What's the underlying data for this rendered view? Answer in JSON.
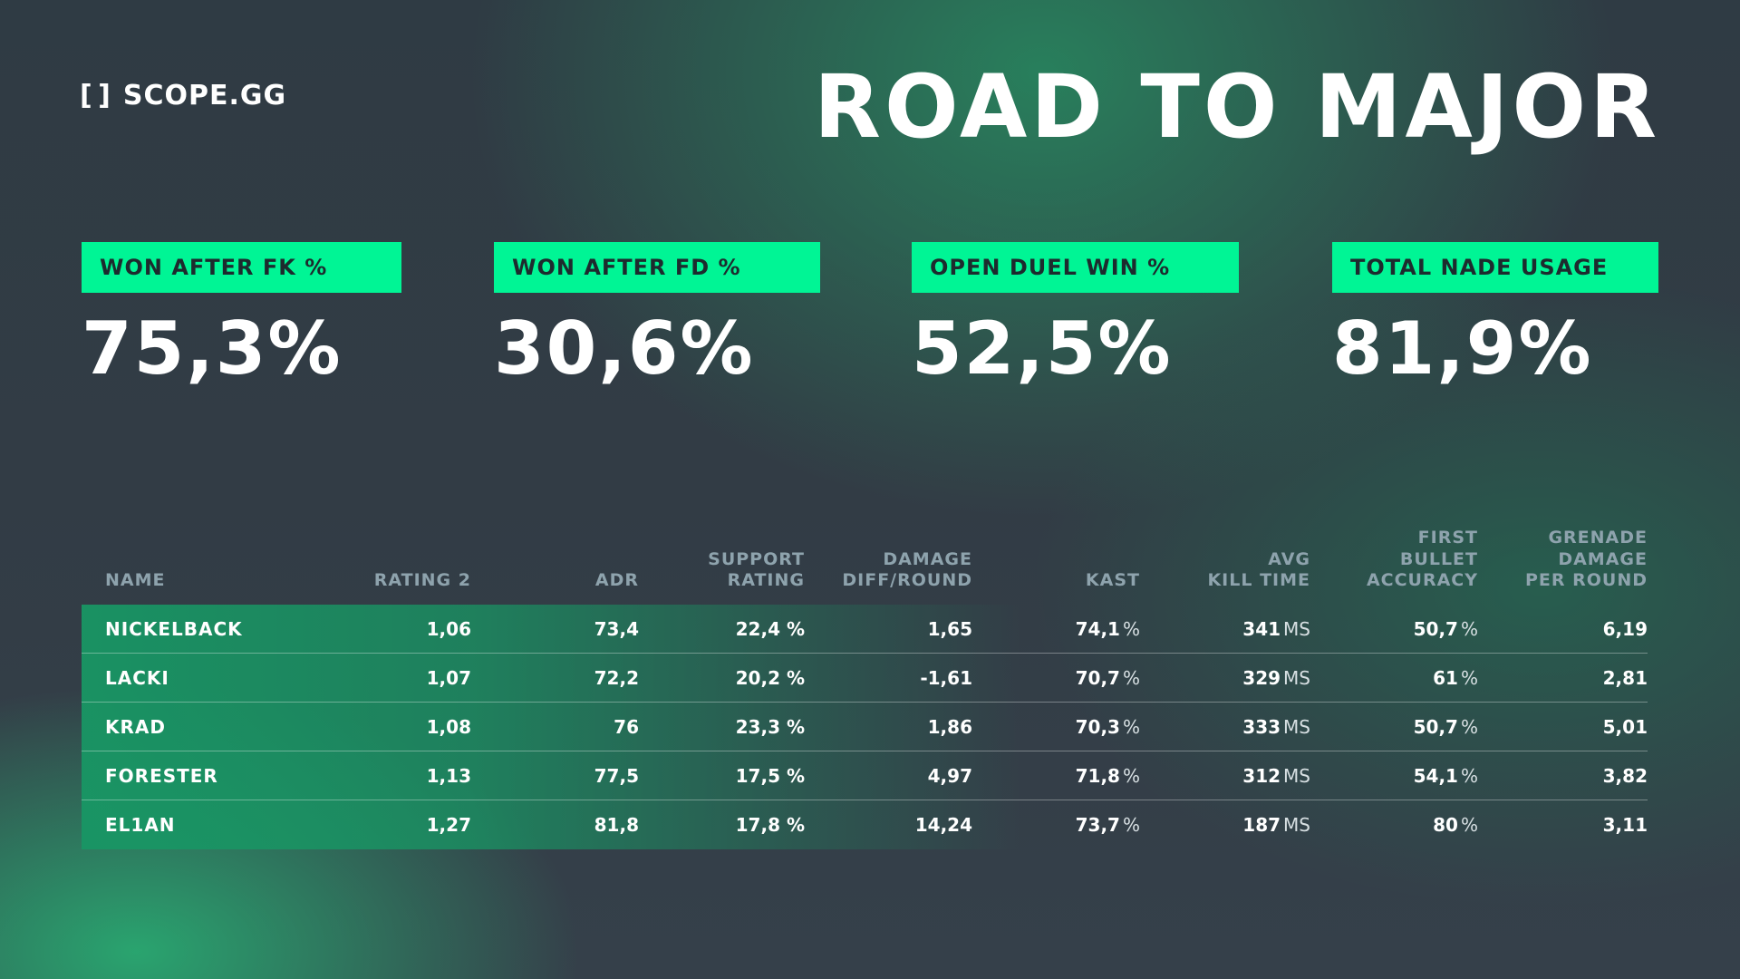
{
  "brand": {
    "icon": "[ ]",
    "name": "SCOPE.GG"
  },
  "title": "ROAD TO MAJOR",
  "stats": [
    {
      "label": "WON AFTER FK %",
      "value": "75,3%"
    },
    {
      "label": "WON AFTER FD %",
      "value": "30,6%"
    },
    {
      "label": "OPEN DUEL WIN %",
      "value": "52,5%"
    },
    {
      "label": "TOTAL NADE USAGE",
      "value": "81,9%"
    }
  ],
  "table": {
    "headers": [
      "NAME",
      "RATING 2",
      "ADR",
      "SUPPORT\nRATING",
      "DAMAGE\nDIFF/ROUND",
      "KAST",
      "AVG\nKILL TIME",
      "FIRST\nBULLET\nACCURACY",
      "GRENADE\nDAMAGE\nPER ROUND"
    ],
    "rows": [
      {
        "name": "NICKELBACK",
        "rating": "1,06",
        "adr": "73,4",
        "support": "22,4 %",
        "damage_diff": "1,65",
        "kast": "74,1",
        "kast_unit": "%",
        "kill_time": "341",
        "kill_time_unit": "MS",
        "fba": "50,7",
        "fba_unit": "%",
        "grenade": "6,19"
      },
      {
        "name": "LACKI",
        "rating": "1,07",
        "adr": "72,2",
        "support": "20,2 %",
        "damage_diff": "-1,61",
        "kast": "70,7",
        "kast_unit": "%",
        "kill_time": "329",
        "kill_time_unit": "MS",
        "fba": "61",
        "fba_unit": "%",
        "grenade": "2,81"
      },
      {
        "name": "KRAD",
        "rating": "1,08",
        "adr": "76",
        "support": "23,3 %",
        "damage_diff": "1,86",
        "kast": "70,3",
        "kast_unit": "%",
        "kill_time": "333",
        "kill_time_unit": "MS",
        "fba": "50,7",
        "fba_unit": "%",
        "grenade": "5,01"
      },
      {
        "name": "FORESTER",
        "rating": "1,13",
        "adr": "77,5",
        "support": "17,5 %",
        "damage_diff": "4,97",
        "kast": "71,8",
        "kast_unit": "%",
        "kill_time": "312",
        "kill_time_unit": "MS",
        "fba": "54,1",
        "fba_unit": "%",
        "grenade": "3,82"
      },
      {
        "name": "EL1AN",
        "rating": "1,27",
        "adr": "81,8",
        "support": "17,8 %",
        "damage_diff": "14,24",
        "kast": "73,7",
        "kast_unit": "%",
        "kill_time": "187",
        "kill_time_unit": "MS",
        "fba": "80",
        "fba_unit": "%",
        "grenade": "3,11"
      }
    ]
  },
  "colors": {
    "accent": "#00f595",
    "row_green": "#18966a",
    "header_text": "#8ea3ad"
  }
}
